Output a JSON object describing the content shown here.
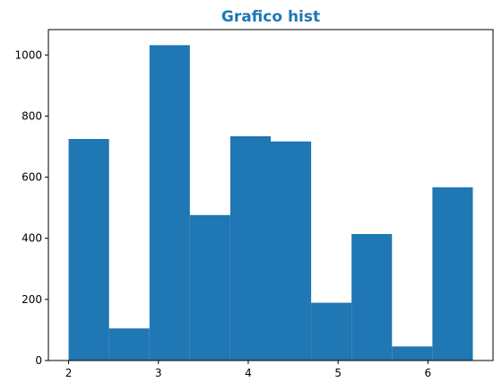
{
  "chart_data": {
    "type": "bar",
    "title": "Grafico hist",
    "xlabel": "",
    "ylabel": "",
    "bin_edges": [
      2.0,
      2.45,
      2.9,
      3.35,
      3.8,
      4.25,
      4.7,
      5.15,
      5.6,
      6.05,
      6.5
    ],
    "values": [
      725,
      105,
      1032,
      476,
      734,
      717,
      189,
      414,
      46,
      567
    ],
    "xlim": [
      1.775,
      6.725
    ],
    "ylim": [
      0,
      1083
    ],
    "xticks": [
      2,
      3,
      4,
      5,
      6
    ],
    "yticks": [
      0,
      200,
      400,
      600,
      800,
      1000
    ],
    "grid": false,
    "colors": {
      "bar": "#1f77b4",
      "title": "#1f77b4",
      "axis": "#000000"
    }
  }
}
